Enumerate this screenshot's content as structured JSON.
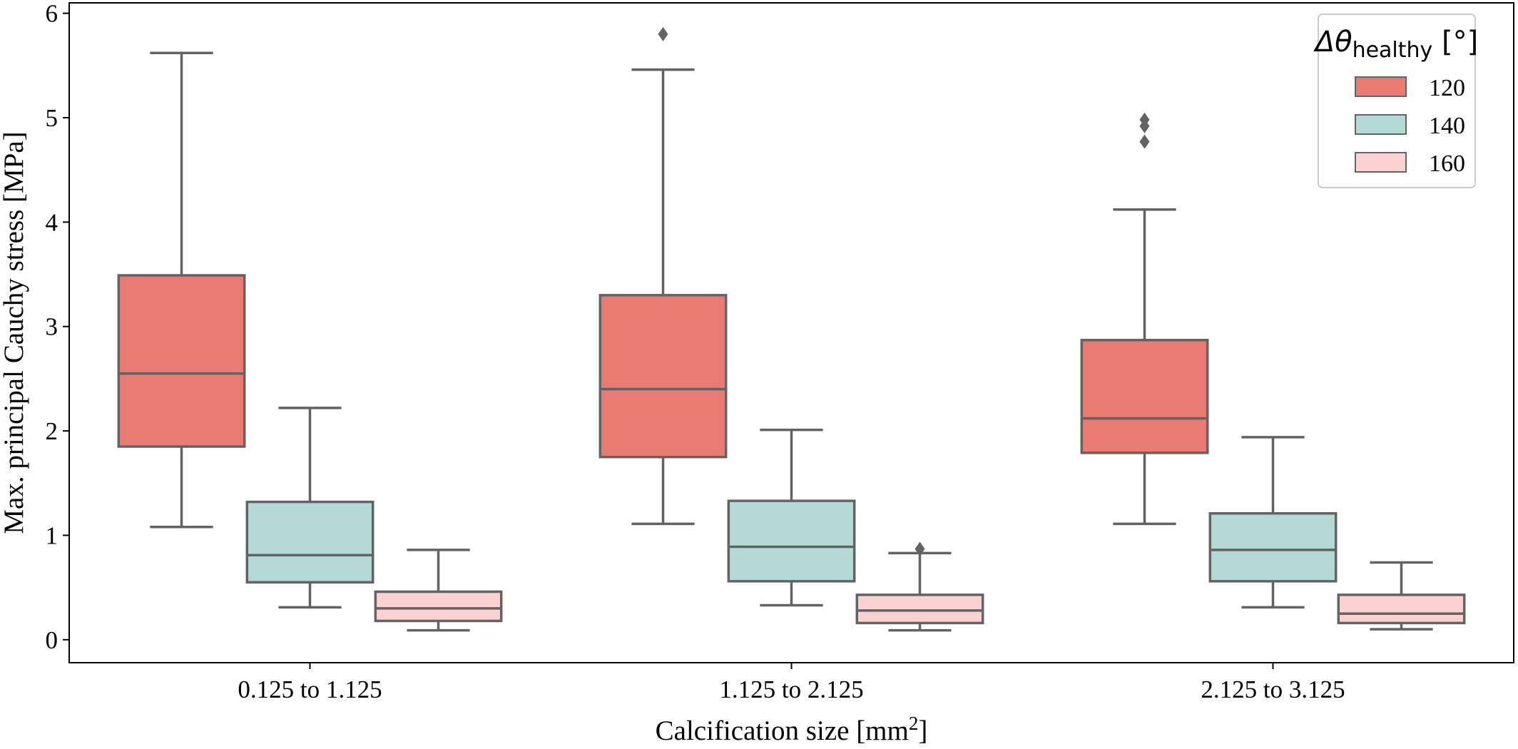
{
  "chart_data": {
    "type": "box",
    "xlabel": "Calcification size [mm²]",
    "ylabel": "Max. principal Cauchy stress [MPa]",
    "ylim": [
      -0.22,
      6.1
    ],
    "yticks": [
      "0",
      "1",
      "2",
      "3",
      "4",
      "5",
      "6"
    ],
    "categories": [
      "0.125 to 1.125",
      "1.125 to 2.125",
      "2.125 to 3.125"
    ],
    "legend": {
      "title": "Δθ",
      "title_sub": "healthy",
      "title_unit": "[°]",
      "position": "top-right"
    },
    "series": [
      {
        "name": "120",
        "color": "#e97b74",
        "boxes": [
          {
            "whisker_low": 1.08,
            "q1": 1.85,
            "median": 2.55,
            "q3": 3.49,
            "whisker_high": 5.62,
            "outliers": []
          },
          {
            "whisker_low": 1.11,
            "q1": 1.75,
            "median": 2.4,
            "q3": 3.3,
            "whisker_high": 5.46,
            "outliers": [
              5.8
            ]
          },
          {
            "whisker_low": 1.11,
            "q1": 1.79,
            "median": 2.12,
            "q3": 2.87,
            "whisker_high": 4.12,
            "outliers": [
              4.77,
              4.92,
              4.98
            ]
          }
        ]
      },
      {
        "name": "140",
        "color": "#b4d9d6",
        "boxes": [
          {
            "whisker_low": 0.31,
            "q1": 0.55,
            "median": 0.81,
            "q3": 1.32,
            "whisker_high": 2.22,
            "outliers": []
          },
          {
            "whisker_low": 0.33,
            "q1": 0.56,
            "median": 0.89,
            "q3": 1.33,
            "whisker_high": 2.01,
            "outliers": []
          },
          {
            "whisker_low": 0.31,
            "q1": 0.56,
            "median": 0.86,
            "q3": 1.21,
            "whisker_high": 1.94,
            "outliers": []
          }
        ]
      },
      {
        "name": "160",
        "color": "#fbd1d1",
        "boxes": [
          {
            "whisker_low": 0.09,
            "q1": 0.18,
            "median": 0.3,
            "q3": 0.46,
            "whisker_high": 0.86,
            "outliers": []
          },
          {
            "whisker_low": 0.09,
            "q1": 0.16,
            "median": 0.28,
            "q3": 0.43,
            "whisker_high": 0.83,
            "outliers": [
              0.87
            ]
          },
          {
            "whisker_low": 0.1,
            "q1": 0.16,
            "median": 0.25,
            "q3": 0.43,
            "whisker_high": 0.74,
            "outliers": []
          }
        ]
      }
    ],
    "edge_color": "#636363"
  }
}
